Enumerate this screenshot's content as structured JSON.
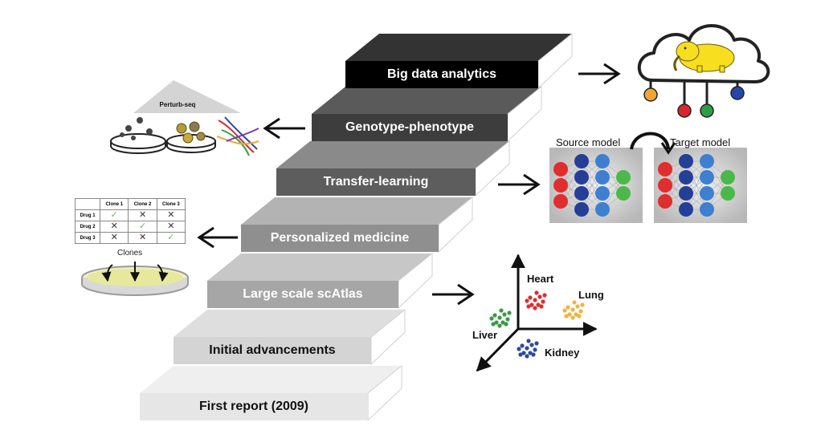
{
  "steps": [
    {
      "label": "First report (2009)",
      "fill": "#e6e6e6",
      "top_fill": "#efefef",
      "text_color": "#111111"
    },
    {
      "label": "Initial advancements",
      "fill": "#d4d4d4",
      "top_fill": "#dedede",
      "text_color": "#111111"
    },
    {
      "label": "Large scale scAtlas",
      "fill": "#a6a6a6",
      "top_fill": "#c7c7c7",
      "text_color": "#ffffff"
    },
    {
      "label": "Personalized medicine",
      "fill": "#8f8f8f",
      "top_fill": "#b3b3b3",
      "text_color": "#ffffff"
    },
    {
      "label": "Transfer-learning",
      "fill": "#5d5d5d",
      "top_fill": "#8a8a8a",
      "text_color": "#ffffff"
    },
    {
      "label": "Genotype-phenotype",
      "fill": "#3d3d3d",
      "top_fill": "#5a5a5a",
      "text_color": "#ffffff"
    },
    {
      "label": "Big data analytics",
      "fill": "#000000",
      "top_fill": "#333333",
      "text_color": "#ffffff"
    }
  ],
  "perturb": {
    "label": "Perturb-seq"
  },
  "drug_table": {
    "headers": [
      "",
      "Clone 1",
      "Clone 2",
      "Clone 3"
    ],
    "rows": [
      {
        "name": "Drug 1",
        "marks": [
          "check",
          "cross",
          "cross"
        ]
      },
      {
        "name": "Drug 2",
        "marks": [
          "cross",
          "check",
          "cross"
        ]
      },
      {
        "name": "Drug 3",
        "marks": [
          "cross",
          "cross",
          "check"
        ]
      }
    ],
    "clones_label": "Clones"
  },
  "transfer": {
    "source_label": "Source model",
    "target_label": "Target model"
  },
  "atlas": {
    "clusters": [
      {
        "label": "Heart",
        "color": "#e02d2d"
      },
      {
        "label": "Lung",
        "color": "#f2b53a"
      },
      {
        "label": "Liver",
        "color": "#3a9a46"
      },
      {
        "label": "Kidney",
        "color": "#2e4a9e"
      }
    ]
  },
  "cloud": {
    "node_colors": [
      "#f2a531",
      "#d9262b",
      "#2e9e45",
      "#2747a8"
    ],
    "mascot_color": "#f7de1f"
  },
  "icons": [
    "right-arrow-icon",
    "left-arrow-icon",
    "cloud-icon",
    "elephant-icon",
    "petri-dish-icon",
    "dna-icon",
    "neural-network-icon"
  ]
}
